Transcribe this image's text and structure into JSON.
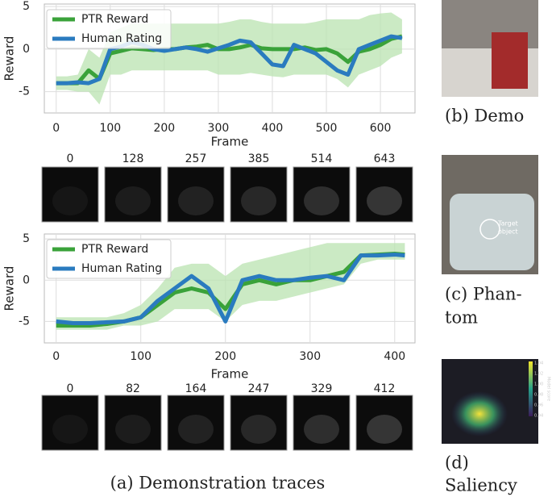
{
  "chart_data": [
    {
      "type": "line",
      "ylabel": "Reward",
      "xlabel": "Frame",
      "xlim": [
        -22,
        664
      ],
      "ylim": [
        -7.5,
        5.3
      ],
      "xticks": [
        0,
        100,
        200,
        300,
        400,
        500,
        600
      ],
      "yticks": [
        -5,
        0,
        5
      ],
      "grid": true,
      "legend": "upper left",
      "x": [
        0,
        20,
        40,
        60,
        80,
        100,
        120,
        140,
        160,
        180,
        200,
        220,
        240,
        260,
        280,
        300,
        320,
        340,
        360,
        380,
        400,
        420,
        440,
        460,
        480,
        500,
        520,
        540,
        560,
        580,
        600,
        620,
        640
      ],
      "band": {
        "color": "#b9e3b0",
        "lower": [
          -4.8,
          -4.8,
          -5,
          -5,
          -6.5,
          -3,
          -3,
          -2.5,
          -2.5,
          -2.5,
          -2.5,
          -2.5,
          -2.5,
          -2.5,
          -2.5,
          -3,
          -3,
          -3,
          -2.8,
          -3,
          -3.2,
          -3.3,
          -3,
          -3,
          -3,
          -3,
          -3.5,
          -4.5,
          -3,
          -2.5,
          -2,
          -1,
          -0.5
        ],
        "upper": [
          -3.2,
          -3.2,
          -3,
          0,
          -1,
          2,
          2.5,
          3,
          3,
          3,
          3,
          3,
          3,
          3,
          3,
          3,
          3.2,
          3.5,
          3.5,
          3.2,
          3,
          3,
          3,
          3,
          3.2,
          3.5,
          3.5,
          3.5,
          3.5,
          4,
          4.2,
          4.3,
          3.5
        ]
      },
      "series": [
        {
          "name": "PTR Reward",
          "color": "#3aa23a",
          "values": [
            -4,
            -4,
            -4,
            -2.5,
            -3.5,
            -0.5,
            -0.2,
            0.1,
            0,
            -0.1,
            0,
            0,
            0.2,
            0.3,
            0.5,
            0,
            0,
            0.2,
            0.5,
            0.1,
            0,
            0,
            0,
            0.2,
            -0.1,
            0,
            -0.5,
            -1.5,
            -0.3,
            0,
            0.5,
            1.2,
            1.5
          ]
        },
        {
          "name": "Human Rating",
          "color": "#2a7bbf",
          "values": [
            -4,
            -4,
            -3.9,
            -4,
            -3.5,
            0,
            0.3,
            0.8,
            0.5,
            0,
            -0.2,
            0,
            0.2,
            0,
            -0.3,
            0.1,
            0.5,
            1,
            0.8,
            -0.5,
            -1.8,
            -2,
            0.5,
            0,
            -0.5,
            -1.5,
            -2.5,
            -3,
            0,
            0.5,
            1,
            1.5,
            1.3
          ]
        }
      ]
    },
    {
      "type": "line",
      "ylabel": "Reward",
      "xlabel": "Frame",
      "xlim": [
        -14,
        424
      ],
      "ylim": [
        -7.6,
        5.6
      ],
      "xticks": [
        0,
        100,
        200,
        300,
        400
      ],
      "yticks": [
        -5,
        0,
        5
      ],
      "grid": true,
      "legend": "upper left",
      "x": [
        0,
        20,
        40,
        60,
        80,
        100,
        120,
        140,
        160,
        180,
        200,
        220,
        240,
        260,
        280,
        300,
        320,
        340,
        360,
        380,
        400,
        412
      ],
      "band": {
        "color": "#b9e3b0",
        "lower": [
          -6,
          -6,
          -6,
          -6,
          -5.5,
          -5.5,
          -5,
          -3.5,
          -3.5,
          -3.5,
          -5,
          -3,
          -2.5,
          -2.5,
          -2,
          -1.5,
          -1,
          -0.5,
          2,
          2.5,
          2.5,
          2.5
        ],
        "upper": [
          -4.5,
          -4.5,
          -4.5,
          -4.5,
          -4,
          -3,
          -1,
          1.5,
          2,
          2,
          0.5,
          2,
          2.5,
          3,
          3.5,
          4,
          4.5,
          4.5,
          4.5,
          4.5,
          4.5,
          4.5
        ]
      },
      "series": [
        {
          "name": "PTR Reward",
          "color": "#3aa23a",
          "values": [
            -5.5,
            -5.5,
            -5.5,
            -5.3,
            -5,
            -4.5,
            -3,
            -1.5,
            -1,
            -1.5,
            -3.5,
            -0.5,
            0,
            -0.5,
            0,
            0,
            0.5,
            1,
            3,
            3.1,
            3.2,
            3.1
          ]
        },
        {
          "name": "Human Rating",
          "color": "#2a7bbf",
          "values": [
            -5,
            -5.2,
            -5.2,
            -5.1,
            -5,
            -4.5,
            -2.5,
            -1,
            0.5,
            -1,
            -5,
            0,
            0.5,
            0,
            0,
            0.3,
            0.5,
            0,
            3,
            3,
            3.1,
            3
          ]
        }
      ]
    }
  ],
  "thumbnails": [
    [
      0,
      128,
      257,
      385,
      514,
      643
    ],
    [
      0,
      82,
      164,
      247,
      329,
      412
    ]
  ],
  "captions": {
    "a": "(a) Demonstration traces",
    "b": "(b) Demo",
    "c": [
      "(c) Phan-",
      "tom"
    ],
    "d": [
      "(d)",
      "Saliency"
    ]
  },
  "phantom_label": [
    "Target",
    "object"
  ],
  "saliency_colorbar": [
    "1.04",
    "1.02",
    "1.00",
    "0.98",
    "0.96",
    "0.94"
  ],
  "saliency_colorbar_label": "Model score"
}
